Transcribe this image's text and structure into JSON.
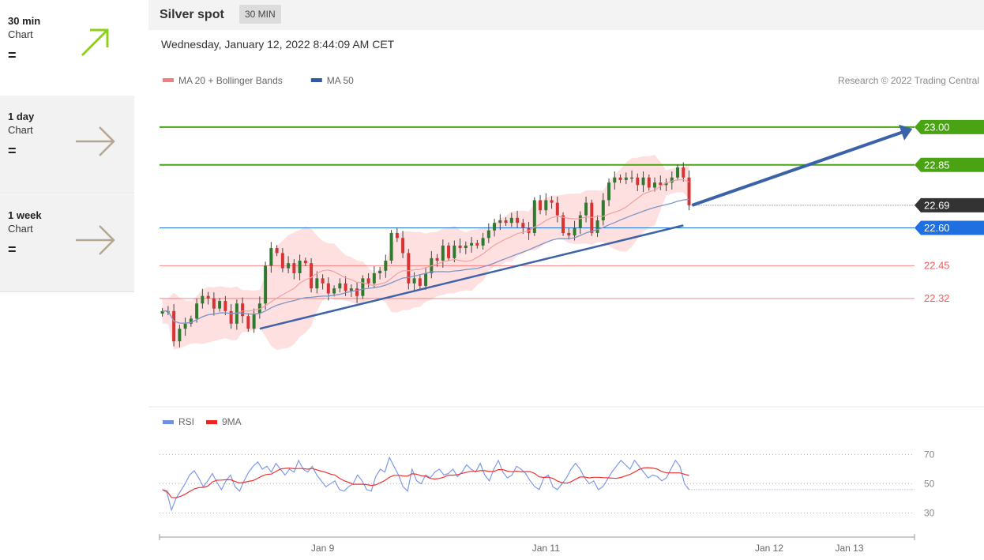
{
  "sidebar": {
    "items": [
      {
        "name": "30 min",
        "sub": "Chart",
        "eq": "=",
        "arrow": "up-right-arrow-icon",
        "color": "#8ed11b"
      },
      {
        "name": "1 day",
        "sub": "Chart",
        "eq": "=",
        "arrow": "right-arrow-icon",
        "color": "#b5a690"
      },
      {
        "name": "1 week",
        "sub": "Chart",
        "eq": "=",
        "arrow": "right-arrow-icon",
        "color": "#b5a690"
      }
    ]
  },
  "header": {
    "title": "Silver spot",
    "badge": "30 MIN"
  },
  "date_text": "Wednesday, January 12, 2022 8:44:09 AM CET",
  "chart_data": {
    "type": "candlestick",
    "legend": [
      {
        "label": "MA 20 + Bollinger Bands",
        "color": "#f08080"
      },
      {
        "label": "MA 50",
        "color": "#2e5aa7"
      }
    ],
    "credit": "Research © 2022 Trading Central",
    "price_axis": {
      "min": 22.0,
      "max": 23.1
    },
    "levels": [
      {
        "value": 23.0,
        "label": "23.00",
        "type": "resistance",
        "color": "#4aa312"
      },
      {
        "value": 22.85,
        "label": "22.85",
        "type": "resistance",
        "color": "#4aa312"
      },
      {
        "value": 22.69,
        "label": "22.69",
        "type": "last",
        "color": "#333333"
      },
      {
        "value": 22.6,
        "label": "22.60",
        "type": "pivot",
        "color": "#1f6fe0"
      },
      {
        "value": 22.45,
        "label": "22.45",
        "type": "support",
        "color": "#ff5555"
      },
      {
        "value": 22.32,
        "label": "22.32",
        "type": "support",
        "color": "#ff5555"
      }
    ],
    "closes": [
      22.27,
      22.27,
      22.15,
      22.2,
      22.22,
      22.24,
      22.3,
      22.33,
      22.32,
      22.28,
      22.31,
      22.27,
      22.22,
      22.3,
      22.25,
      22.2,
      22.26,
      22.3,
      22.45,
      22.52,
      22.5,
      22.44,
      22.46,
      22.42,
      22.47,
      22.46,
      22.36,
      22.4,
      22.38,
      22.34,
      22.36,
      22.38,
      22.35,
      22.36,
      22.33,
      22.4,
      22.38,
      22.42,
      22.43,
      22.47,
      22.58,
      22.56,
      22.5,
      22.38,
      22.4,
      22.37,
      22.42,
      22.48,
      22.47,
      22.53,
      22.48,
      22.53,
      22.52,
      22.53,
      22.54,
      22.53,
      22.56,
      22.59,
      22.62,
      22.63,
      22.62,
      22.64,
      22.62,
      22.6,
      22.58,
      22.71,
      22.67,
      22.71,
      22.7,
      22.65,
      22.58,
      22.57,
      22.6,
      22.65,
      22.7,
      22.58,
      22.63,
      22.71,
      22.78,
      22.8,
      22.79,
      22.8,
      22.8,
      22.77,
      22.8,
      22.76,
      22.78,
      22.77,
      22.78,
      22.8,
      22.84,
      22.8,
      22.69
    ],
    "trendline": {
      "from_index": 17,
      "from_value": 22.2,
      "to_index": 91,
      "to_value": 22.61
    },
    "projection": {
      "from_value": 22.69,
      "to_value": 23.0
    },
    "x_labels": [
      {
        "label": "Jan 9",
        "index": 28
      },
      {
        "label": "Jan 11",
        "index": 67
      },
      {
        "label": "Jan 12",
        "index": 106
      },
      {
        "label": "Jan 13",
        "index": 120
      }
    ],
    "x_index_range": [
      -0.5,
      130
    ],
    "rsi": {
      "legend": [
        {
          "label": "RSI",
          "color": "#6f8fe0"
        },
        {
          "label": "9MA",
          "color": "#ee2222"
        }
      ],
      "levels": [
        70,
        50,
        30
      ],
      "range": [
        20,
        80
      ],
      "rsi_values": [
        46,
        44,
        32,
        40,
        45,
        50,
        56,
        59,
        54,
        48,
        52,
        57,
        51,
        46,
        52,
        56,
        48,
        45,
        52,
        58,
        62,
        65,
        60,
        62,
        58,
        64,
        60,
        56,
        60,
        58,
        66,
        60,
        58,
        62,
        56,
        52,
        48,
        50,
        52,
        46,
        45,
        48,
        50,
        56,
        52,
        46,
        45,
        55,
        60,
        58,
        68,
        62,
        56,
        48,
        45,
        60,
        52,
        50,
        56,
        54,
        58,
        60,
        56,
        57,
        60,
        55,
        58,
        63,
        60,
        58,
        64,
        56,
        52,
        60,
        66,
        58,
        54,
        56,
        62,
        60,
        57,
        52,
        48,
        46,
        54,
        56,
        48,
        46,
        50,
        54,
        60,
        64,
        60,
        54,
        50,
        52,
        46,
        48,
        53,
        58,
        62,
        66,
        63,
        60,
        66,
        62,
        58,
        54,
        56,
        55,
        52,
        54,
        60,
        66,
        62,
        50,
        46
      ]
    }
  }
}
